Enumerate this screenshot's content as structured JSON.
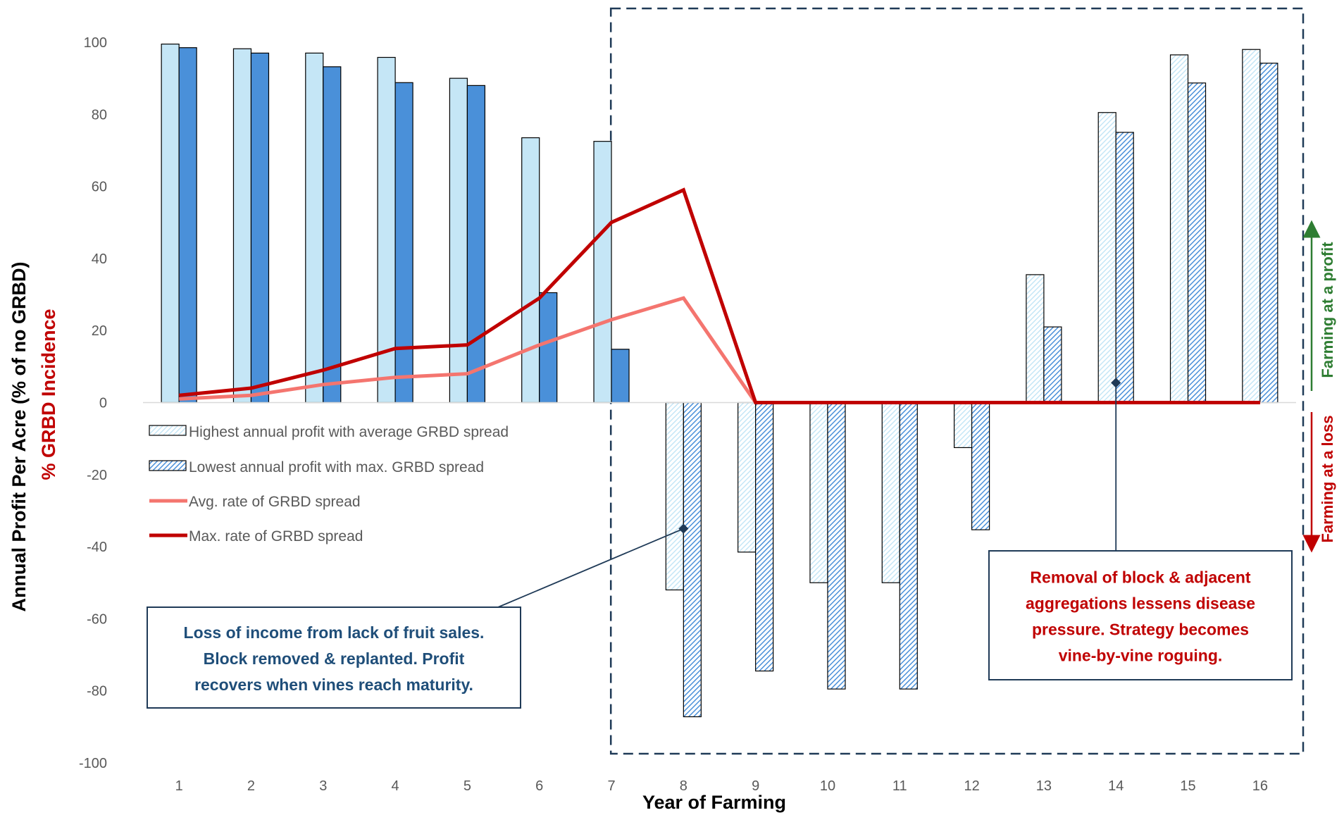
{
  "chart_data": {
    "type": "bar",
    "x": [
      1,
      2,
      3,
      4,
      5,
      6,
      7,
      8,
      9,
      10,
      11,
      12,
      13,
      14,
      15,
      16
    ],
    "series": [
      {
        "name": "Highest annual profit with average GRBD spread",
        "kind": "bar",
        "color": "#c5e6f6",
        "pattern_from_year": 8,
        "values": [
          99.5,
          98.2,
          97,
          95.8,
          90,
          73.5,
          72.5,
          -52,
          -41.5,
          -50,
          -50,
          -12.5,
          35.5,
          80.5,
          96.5,
          98
        ]
      },
      {
        "name": "Lowest annual profit with max. GRBD spread",
        "kind": "bar",
        "color": "#4a90d9",
        "pattern_from_year": 8,
        "values": [
          98.5,
          97,
          93.2,
          88.8,
          88,
          30.5,
          14.8,
          -87.2,
          -74.5,
          -79.5,
          -79.5,
          -35.3,
          21,
          75,
          88.7,
          94.2
        ]
      },
      {
        "name": "Avg. rate of GRBD spread",
        "kind": "line",
        "color": "#f4756f",
        "values": [
          1,
          2,
          5,
          7,
          8,
          16,
          23,
          29,
          0,
          0,
          0,
          0,
          0,
          0,
          0,
          0
        ]
      },
      {
        "name": "Max. rate of GRBD spread",
        "kind": "line",
        "color": "#c00000",
        "values": [
          2,
          4,
          9,
          15,
          16,
          29,
          50,
          59,
          0,
          0,
          0,
          0,
          0,
          0,
          0,
          0
        ]
      }
    ],
    "xlabel": "Year of Farming",
    "ylabel": "Annual Profit Per Acre (% of no GRBD)",
    "ylabel2": "% GRBD Incidence",
    "ylim": [
      -100,
      100
    ],
    "yticks": [
      -100,
      -80,
      -60,
      -40,
      -20,
      0,
      20,
      40,
      60,
      80,
      100
    ],
    "grid": false,
    "legend_position": "center-left",
    "annotations": [
      {
        "id": "left-callout",
        "lines": [
          "Loss of income from lack of fruit sales.",
          "Block removed & replanted. Profit",
          "recovers when vines reach maturity."
        ],
        "color": "#1f4e79",
        "target": {
          "x": 8,
          "y": -35
        }
      },
      {
        "id": "right-callout",
        "lines": [
          "Removal of block & adjacent",
          "aggregations lessens disease",
          "pressure. Strategy becomes",
          "vine-by-vine roguing."
        ],
        "color": "#c00000",
        "target": {
          "x": 14,
          "y": 5.5
        }
      }
    ],
    "highlight_region": {
      "from_year": 8,
      "to_year": 16,
      "style": "dashed box"
    },
    "side_labels": {
      "profit": {
        "text": "Farming at a profit",
        "color": "#2e7d32"
      },
      "loss": {
        "text": "Farming at a loss",
        "color": "#c00000"
      }
    }
  }
}
